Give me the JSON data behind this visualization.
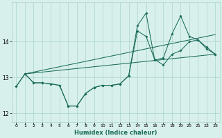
{
  "xlabel": "Humidex (Indice chaleur)",
  "bg_color": "#d8f0ec",
  "line_color": "#1a6b5a",
  "grid_color": "#aad4cc",
  "xlim": [
    -0.5,
    23.5
  ],
  "ylim": [
    11.75,
    15.1
  ],
  "yticks": [
    12,
    13,
    14
  ],
  "xticks": [
    0,
    1,
    2,
    3,
    4,
    5,
    6,
    7,
    8,
    9,
    10,
    11,
    12,
    13,
    14,
    15,
    16,
    17,
    18,
    19,
    20,
    21,
    22,
    23
  ],
  "line1_x": [
    0,
    1,
    2,
    3,
    4,
    5,
    6,
    7,
    8,
    9,
    10,
    11,
    12,
    13,
    14,
    15,
    16,
    17,
    18,
    19,
    20,
    21,
    22,
    23
  ],
  "line1_y": [
    12.75,
    13.1,
    12.85,
    12.85,
    12.82,
    12.78,
    12.2,
    12.2,
    12.55,
    12.72,
    12.78,
    12.78,
    12.82,
    13.05,
    14.45,
    14.8,
    13.48,
    13.55,
    14.22,
    14.72,
    14.15,
    14.05,
    13.85,
    13.65
  ],
  "line2_x": [
    0,
    1,
    2,
    3,
    4,
    5,
    6,
    7,
    8,
    9,
    10,
    11,
    12,
    13,
    14,
    15,
    16,
    17,
    18,
    19,
    20,
    21,
    22,
    23
  ],
  "line2_y": [
    12.75,
    13.1,
    12.85,
    12.85,
    12.82,
    12.78,
    12.2,
    12.2,
    12.55,
    12.72,
    12.78,
    12.78,
    12.82,
    13.05,
    14.3,
    14.15,
    13.5,
    13.35,
    13.65,
    13.75,
    14.0,
    14.05,
    13.8,
    13.65
  ],
  "trend1_x": [
    1,
    23
  ],
  "trend1_y": [
    13.1,
    13.65
  ],
  "trend2_x": [
    1,
    23
  ],
  "trend2_y": [
    13.1,
    14.2
  ]
}
